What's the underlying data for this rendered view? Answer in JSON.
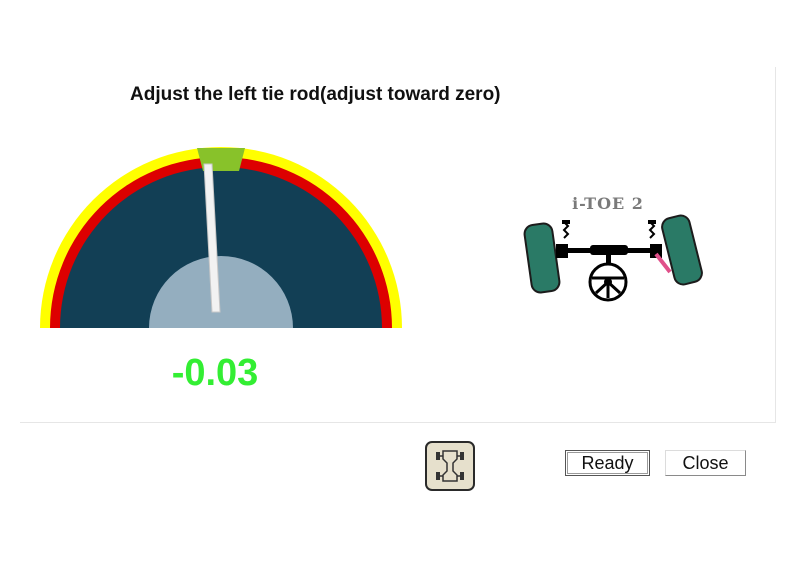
{
  "instruction": "Adjust the left tie rod(adjust toward zero)",
  "gauge": {
    "value": "-0.03",
    "value_color": "#33ee33",
    "colors": {
      "outer_ring": "#ffff00",
      "middle_ring": "#dd0000",
      "face": "#123f55",
      "hub": "#94aebf",
      "target_zone": "#88c22a",
      "needle": "#f2f2f2"
    }
  },
  "diagram": {
    "title": "i-TOE 2",
    "icon": "vehicle-front-axle-icon",
    "tire_color": "#2a7a66",
    "highlight_color": "#e0508a"
  },
  "toolbar": {
    "alignment_icon": "car-chassis-icon",
    "ready_label": "Ready",
    "close_label": "Close"
  }
}
